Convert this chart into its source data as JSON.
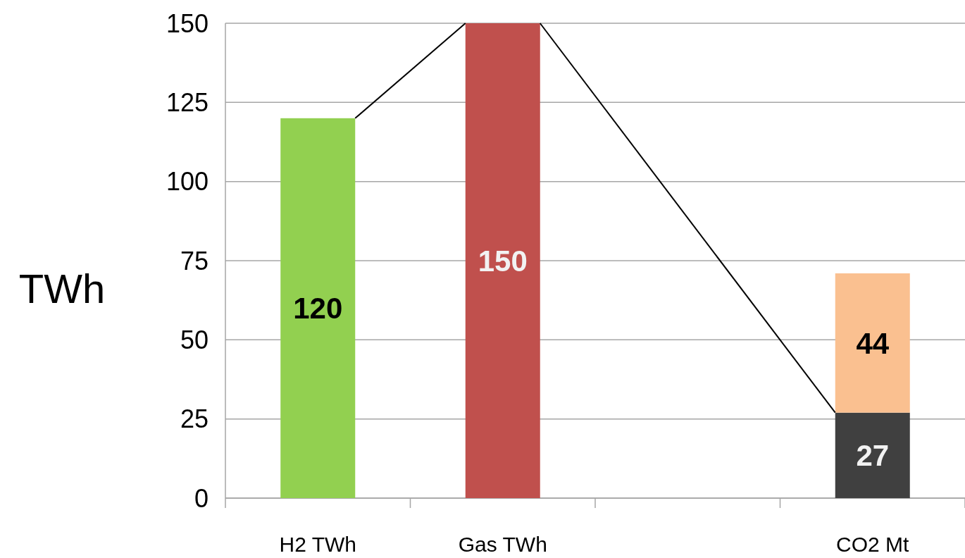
{
  "chart_data": {
    "type": "bar",
    "ylabel": "TWh",
    "categories": [
      "H2 TWh",
      "Gas TWh",
      null,
      "CO2 Mt"
    ],
    "stacked": true,
    "ylim": [
      0,
      150
    ],
    "yticks": [
      0,
      25,
      50,
      75,
      100,
      125,
      150
    ],
    "grid": "y",
    "data_labels": true,
    "series": [
      {
        "colors": [
          "#92d050",
          "#c0504d",
          null,
          "#404040"
        ],
        "values": [
          120,
          150,
          null,
          27
        ]
      },
      {
        "color": "#fac090",
        "values": [
          null,
          null,
          null,
          44
        ]
      }
    ]
  }
}
